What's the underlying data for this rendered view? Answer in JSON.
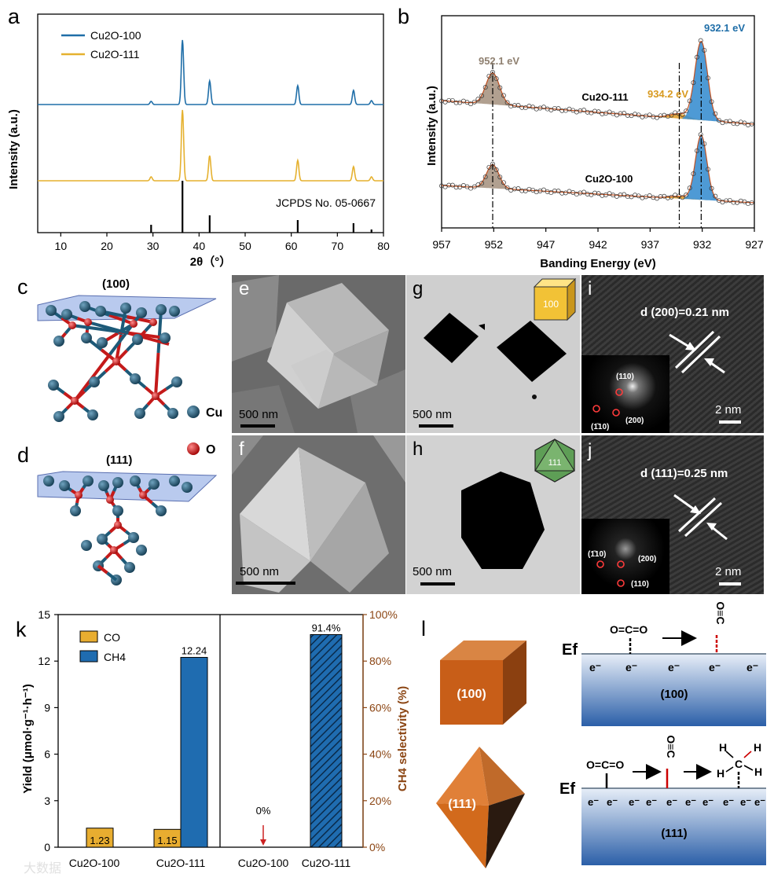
{
  "colors": {
    "cu2o_100": "#1f6ea8",
    "cu2o_111": "#e5b12f",
    "co_bar": "#e8ad30",
    "ch4_bar": "#1f6cb0",
    "selectivity": "#8b4513",
    "peak_brown": "#8f8070",
    "peak_blue": "#3b8fd0",
    "peak_orange": "#e0a030"
  },
  "panel_letters": {
    "a": "a",
    "b": "b",
    "c": "c",
    "d": "d",
    "e": "e",
    "f": "f",
    "g": "g",
    "h": "h",
    "i": "i",
    "j": "j",
    "k": "k",
    "l": "l"
  },
  "panel_a": {
    "ylabel": "Intensity (a.u.)",
    "xlabel": "2θ（°）",
    "legend_100": "Cu2O-100",
    "legend_111": "Cu2O-111",
    "ref_label": "JCPDS No. 05-0667",
    "ticks": [
      "10",
      "20",
      "30",
      "40",
      "50",
      "60",
      "70",
      "80"
    ],
    "peaks_deg": [
      29.6,
      36.4,
      42.3,
      61.4,
      73.5,
      77.4
    ]
  },
  "panel_b": {
    "ylabel": "Intensity (a.u.)",
    "xlabel": "Banding Energy (eV)",
    "ticks": [
      "957",
      "952",
      "947",
      "942",
      "937",
      "932",
      "927"
    ],
    "label_111": "Cu2O-111",
    "label_100": "Cu2O-100",
    "peak1": "952.1 eV",
    "peak2": "934.2 eV",
    "peak3": "932.1 eV"
  },
  "panel_c": {
    "title": "(100)"
  },
  "panel_d": {
    "title": "(111)"
  },
  "legend_atoms": {
    "cu": "Cu",
    "o": "O"
  },
  "micro": {
    "e": {
      "scale": "500 nm"
    },
    "f": {
      "scale": "500 nm"
    },
    "g": {
      "scale": "500 nm",
      "badge": "100"
    },
    "h": {
      "scale": "500 nm",
      "badge": "111"
    },
    "i": {
      "scale": "2 nm",
      "d": "d (200)=0.21 nm",
      "spots": [
        "(110)",
        "(1̄10)",
        "(200)"
      ]
    },
    "j": {
      "scale": "2 nm",
      "d": "d (111)=0.25 nm",
      "spots": [
        "(1̄10)",
        "(200)",
        "(110)"
      ]
    }
  },
  "chart_data": {
    "type": "bar",
    "title": "",
    "left": {
      "ylabel": "Yield (μmol·g⁻¹·h⁻¹)",
      "ylim": [
        0,
        15
      ],
      "ticks": [
        "0",
        "3",
        "6",
        "9",
        "12",
        "15"
      ],
      "categories": [
        "Cu2O-100",
        "Cu2O-111"
      ],
      "series": [
        {
          "name": "CO",
          "values": [
            1.23,
            1.15
          ]
        },
        {
          "name": "CH4",
          "values": [
            0,
            12.24
          ]
        }
      ],
      "labels": [
        "1.23",
        "1.15",
        "12.24"
      ]
    },
    "right": {
      "ylabel": "CH4 selectivity (%)",
      "ylim": [
        0,
        100
      ],
      "ticks": [
        "0%",
        "20%",
        "40%",
        "60%",
        "80%",
        "100%"
      ],
      "categories": [
        "Cu2O-100",
        "Cu2O-111"
      ],
      "values": [
        0,
        91.4
      ],
      "labels": [
        "0%",
        "91.4%"
      ]
    },
    "legend": [
      "CO",
      "CH4"
    ]
  },
  "panel_l": {
    "cube_label": "(100)",
    "oct_label": "(111)",
    "ef": "Ef",
    "co2": "O=C=O",
    "co": "O≡C",
    "surface_100": "(100)",
    "surface_111": "(111)",
    "electron": "e⁻",
    "h": "H",
    "c": "C"
  },
  "watermark": "大数据"
}
